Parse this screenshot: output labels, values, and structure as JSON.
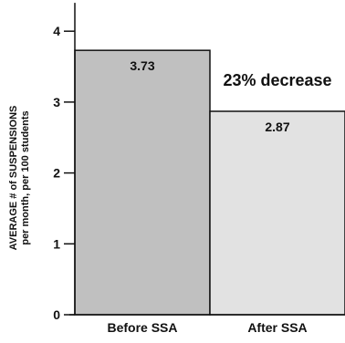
{
  "chart_data": {
    "type": "bar",
    "title": "",
    "xlabel": "",
    "ylabel_line1": "AVERAGE # of SUSPENSIONS",
    "ylabel_line2": "per month, per 100 students",
    "categories": [
      "Before SSA",
      "After SSA"
    ],
    "values": [
      3.73,
      2.87
    ],
    "value_labels": [
      "3.73",
      "2.87"
    ],
    "yticks": [
      0,
      1,
      2,
      3,
      4
    ],
    "ylim": [
      0,
      4.4
    ],
    "annotation": "23% decrease",
    "grid": false,
    "legend": "none",
    "colors": {
      "bar_before": "#c0c0c0",
      "bar_after": "#e2e2e2",
      "stroke": "#111111"
    }
  }
}
